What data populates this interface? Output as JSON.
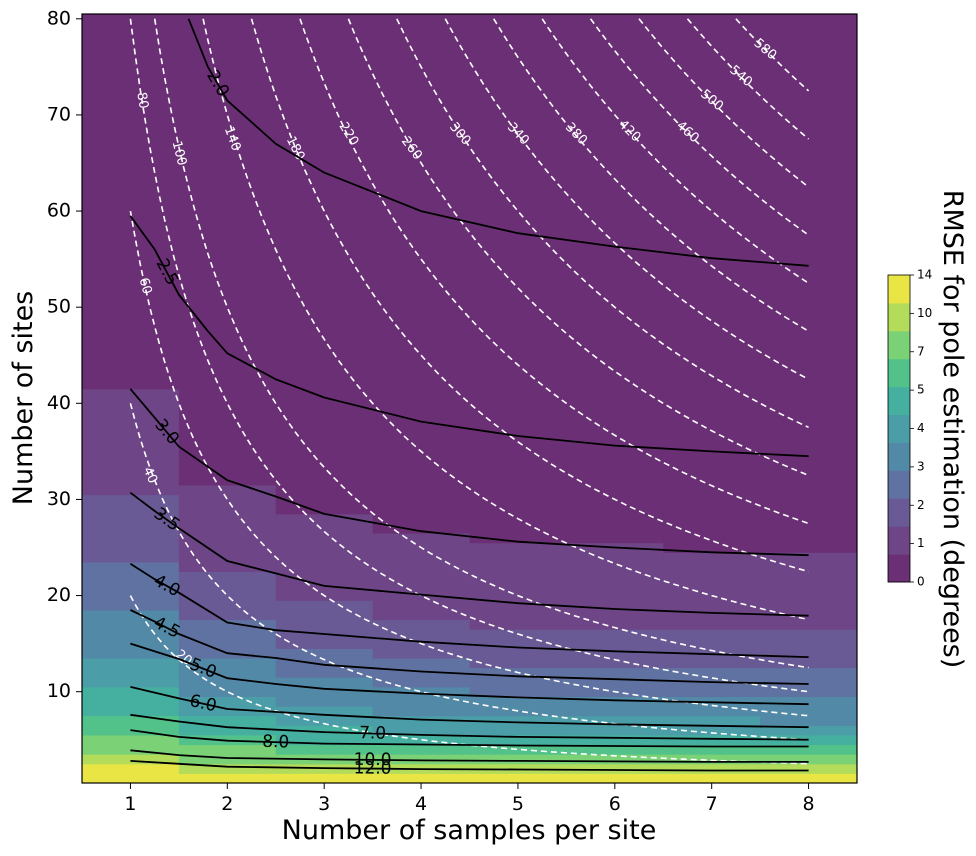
{
  "chart_data": {
    "type": "heatmap",
    "xlabel": "Number of samples per site",
    "ylabel": "Number of sites",
    "colorbar_label": "RMSE for pole estimation (degrees)",
    "xlim": [
      0.5,
      8.5
    ],
    "ylim": [
      0.5,
      80.5
    ],
    "xticks": [
      1,
      2,
      3,
      4,
      5,
      6,
      7,
      8
    ],
    "yticks": [
      10,
      20,
      30,
      40,
      50,
      60,
      70,
      80
    ],
    "colorbar_ticks": [
      0,
      1,
      2,
      3,
      4,
      5,
      7,
      10,
      14
    ],
    "colorbar_colors": [
      "#6b2f75",
      "#6e4586",
      "#695a96",
      "#5f72a2",
      "#5289a6",
      "#4b9da7",
      "#46b0a0",
      "#52c28a",
      "#7bd175",
      "#b2dc5a",
      "#e8e545"
    ],
    "band_palette": [
      "#e8e545",
      "#b2dc5a",
      "#7bd175",
      "#52c28a",
      "#46b0a0",
      "#4b9da7",
      "#5289a6",
      "#5f72a2",
      "#695a96",
      "#6e4586",
      "#6b2f75"
    ],
    "heatmap_band_edges": [
      [
        2.5,
        3.5,
        5.5,
        7.5,
        10.5,
        13.5,
        18.5,
        23.5,
        30.5,
        41.5,
        59.5
      ],
      [
        1.5,
        2.5,
        4.5,
        5.5,
        7.5,
        9.5,
        13.5,
        17.5,
        22.5,
        31.5,
        45.5,
        71.5
      ],
      [
        1.5,
        2.5,
        3.5,
        4.5,
        6.5,
        8.5,
        11.5,
        14.5,
        19.5,
        28.5,
        40.5,
        63.5
      ],
      [
        1.5,
        2.5,
        3.5,
        4.5,
        5.5,
        7.5,
        10.5,
        13.5,
        17.5,
        26.5,
        38.5,
        59.5
      ],
      [
        1.5,
        2.5,
        3.5,
        4.5,
        5.5,
        7.5,
        9.5,
        12.5,
        16.5,
        25.5,
        36.5,
        57.5
      ],
      [
        1.5,
        2.5,
        3.5,
        4.5,
        5.5,
        7.5,
        9.5,
        12.5,
        16.5,
        25.5,
        35.5,
        56.5
      ],
      [
        1.5,
        2.5,
        3.5,
        4.5,
        5.5,
        7.5,
        9.5,
        12.5,
        16.5,
        24.5,
        35.5,
        55.5
      ],
      [
        1.5,
        2.5,
        3.5,
        4.5,
        5.5,
        6.5,
        9.5,
        12.5,
        16.5,
        24.5,
        34.5,
        54.5
      ]
    ],
    "rmse_contours": [
      {
        "label": "2.0",
        "points": [
          [
            1.6,
            80
          ],
          [
            1.8,
            75
          ],
          [
            2.0,
            71.5
          ],
          [
            2.5,
            67
          ],
          [
            3.0,
            64
          ],
          [
            3.5,
            62
          ],
          [
            4.0,
            60
          ],
          [
            5.0,
            57.7
          ],
          [
            6.0,
            56.3
          ],
          [
            7.0,
            55.1
          ],
          [
            8.0,
            54.3
          ]
        ],
        "label_at": 1
      },
      {
        "label": "2.5",
        "points": [
          [
            1.0,
            59.5
          ],
          [
            1.25,
            56
          ],
          [
            1.5,
            51.3
          ],
          [
            1.8,
            47.5
          ],
          [
            2.0,
            45.2
          ],
          [
            2.5,
            42.5
          ],
          [
            3.0,
            40.6
          ],
          [
            4.0,
            38.1
          ],
          [
            5.0,
            36.6
          ],
          [
            6.0,
            35.6
          ],
          [
            7.0,
            35.0
          ],
          [
            8.0,
            34.5
          ]
        ],
        "label_at": 1
      },
      {
        "label": "3.0",
        "points": [
          [
            1.0,
            41.5
          ],
          [
            1.25,
            38.5
          ],
          [
            1.5,
            35.5
          ],
          [
            2.0,
            32.0
          ],
          [
            2.5,
            30.3
          ],
          [
            3.0,
            28.5
          ],
          [
            3.5,
            27.6
          ],
          [
            4.0,
            26.7
          ],
          [
            5.0,
            25.6
          ],
          [
            6.0,
            25.0
          ],
          [
            7.0,
            24.5
          ],
          [
            8.0,
            24.2
          ]
        ],
        "label_at": 1
      },
      {
        "label": "3.5",
        "points": [
          [
            1.0,
            30.7
          ],
          [
            1.25,
            28.8
          ],
          [
            1.5,
            27.0
          ],
          [
            2.0,
            23.6
          ],
          [
            2.5,
            22.3
          ],
          [
            3.0,
            21.0
          ],
          [
            4.0,
            20.1
          ],
          [
            5.0,
            19.2
          ],
          [
            6.0,
            18.6
          ],
          [
            7.0,
            18.2
          ],
          [
            8.0,
            17.9
          ]
        ],
        "label_at": 1
      },
      {
        "label": "4.0",
        "points": [
          [
            1.0,
            23.3
          ],
          [
            1.25,
            21.7
          ],
          [
            1.5,
            20.3
          ],
          [
            2.0,
            17.2
          ],
          [
            2.5,
            16.4
          ],
          [
            3.0,
            16.0
          ],
          [
            4.0,
            15.2
          ],
          [
            5.0,
            14.6
          ],
          [
            6.0,
            14.2
          ],
          [
            7.0,
            13.9
          ],
          [
            8.0,
            13.6
          ]
        ],
        "label_at": 1
      },
      {
        "label": "4.5",
        "points": [
          [
            1.0,
            18.5
          ],
          [
            1.25,
            17.3
          ],
          [
            1.5,
            16.0
          ],
          [
            2.0,
            14.0
          ],
          [
            2.5,
            13.5
          ],
          [
            3.0,
            12.8
          ],
          [
            4.0,
            12.1
          ],
          [
            5.0,
            11.6
          ],
          [
            6.0,
            11.3
          ],
          [
            7.0,
            11.0
          ],
          [
            8.0,
            10.8
          ]
        ],
        "label_at": 1
      },
      {
        "label": "5.0",
        "points": [
          [
            1.0,
            15.0
          ],
          [
            1.5,
            13.4
          ],
          [
            2.0,
            11.4
          ],
          [
            2.5,
            10.8
          ],
          [
            3.0,
            10.3
          ],
          [
            4.0,
            9.8
          ],
          [
            5.0,
            9.4
          ],
          [
            6.0,
            9.1
          ],
          [
            7.0,
            8.9
          ],
          [
            8.0,
            8.7
          ]
        ],
        "label_at": 1
      },
      {
        "label": "6.0",
        "points": [
          [
            1.0,
            10.5
          ],
          [
            1.5,
            9.3
          ],
          [
            2.0,
            8.2
          ],
          [
            3.0,
            7.6
          ],
          [
            4.0,
            7.1
          ],
          [
            5.0,
            6.8
          ],
          [
            6.0,
            6.6
          ],
          [
            7.0,
            6.45
          ],
          [
            8.0,
            6.3
          ]
        ],
        "label_at": 1
      },
      {
        "label": "7.0",
        "points": [
          [
            1.0,
            7.6
          ],
          [
            1.5,
            6.9
          ],
          [
            2.0,
            6.3
          ],
          [
            3.0,
            5.8
          ],
          [
            4.0,
            5.5
          ],
          [
            5.0,
            5.3
          ],
          [
            6.0,
            5.2
          ],
          [
            7.0,
            5.1
          ],
          [
            8.0,
            5.0
          ]
        ],
        "label_at": 3
      },
      {
        "label": "8.0",
        "points": [
          [
            1.0,
            6.0
          ],
          [
            1.5,
            5.3
          ],
          [
            2.0,
            4.9
          ],
          [
            3.0,
            4.6
          ],
          [
            4.0,
            4.5
          ],
          [
            5.0,
            4.4
          ],
          [
            6.0,
            4.35
          ],
          [
            7.0,
            4.3
          ],
          [
            8.0,
            4.3
          ]
        ],
        "label_at": 2
      },
      {
        "label": "10.0",
        "points": [
          [
            1.0,
            3.9
          ],
          [
            1.5,
            3.4
          ],
          [
            2.0,
            3.1
          ],
          [
            3.0,
            2.95
          ],
          [
            4.0,
            2.85
          ],
          [
            5.0,
            2.8
          ],
          [
            6.0,
            2.75
          ],
          [
            7.0,
            2.7
          ],
          [
            8.0,
            2.7
          ]
        ],
        "label_at": 3
      },
      {
        "label": "12.0",
        "points": [
          [
            1.0,
            2.8
          ],
          [
            1.5,
            2.5
          ],
          [
            2.0,
            2.2
          ],
          [
            3.0,
            2.05
          ],
          [
            4.0,
            1.95
          ],
          [
            5.0,
            1.9
          ],
          [
            6.0,
            1.85
          ],
          [
            7.0,
            1.8
          ],
          [
            8.0,
            1.8
          ]
        ],
        "label_at": 3
      }
    ],
    "total_sample_contours": [
      {
        "label": "20",
        "n": 20,
        "label_pos": [
          1.55,
          13.5
        ],
        "label_angle": 38
      },
      {
        "label": "40",
        "n": 40,
        "label_pos": [
          1.2,
          32.5
        ],
        "label_angle": 66
      },
      {
        "label": "60",
        "n": 60,
        "label_pos": [
          1.15,
          52.2
        ],
        "label_angle": 75
      },
      {
        "label": "80",
        "n": 80,
        "label_pos": [
          1.12,
          71.5
        ],
        "label_angle": 80
      },
      {
        "label": "100",
        "n": 100,
        "label_pos": [
          1.5,
          66
        ],
        "label_angle": 76
      },
      {
        "label": "140",
        "n": 140,
        "label_pos": [
          2.05,
          67.5
        ],
        "label_angle": 70
      },
      {
        "label": "180",
        "n": 180,
        "label_pos": [
          2.7,
          66.5
        ],
        "label_angle": 63
      },
      {
        "label": "220",
        "n": 220,
        "label_pos": [
          3.25,
          68
        ],
        "label_angle": 58
      },
      {
        "label": "260",
        "n": 260,
        "label_pos": [
          3.9,
          66.5
        ],
        "label_angle": 53
      },
      {
        "label": "300",
        "n": 300,
        "label_pos": [
          4.4,
          68
        ],
        "label_angle": 50
      },
      {
        "label": "340",
        "n": 340,
        "label_pos": [
          5.0,
          68
        ],
        "label_angle": 47
      },
      {
        "label": "380",
        "n": 380,
        "label_pos": [
          5.6,
          68
        ],
        "label_angle": 46
      },
      {
        "label": "420",
        "n": 420,
        "label_pos": [
          6.15,
          68.3
        ],
        "label_angle": 44
      },
      {
        "label": "460",
        "n": 460,
        "label_pos": [
          6.75,
          68.2
        ],
        "label_angle": 42
      },
      {
        "label": "500",
        "n": 500,
        "label_pos": [
          7.0,
          71.5
        ],
        "label_angle": 40
      },
      {
        "label": "540",
        "n": 540,
        "label_pos": [
          7.3,
          74.0
        ],
        "label_angle": 40
      },
      {
        "label": "580",
        "n": 580,
        "label_pos": [
          7.55,
          76.8
        ],
        "label_angle": 40
      }
    ]
  }
}
